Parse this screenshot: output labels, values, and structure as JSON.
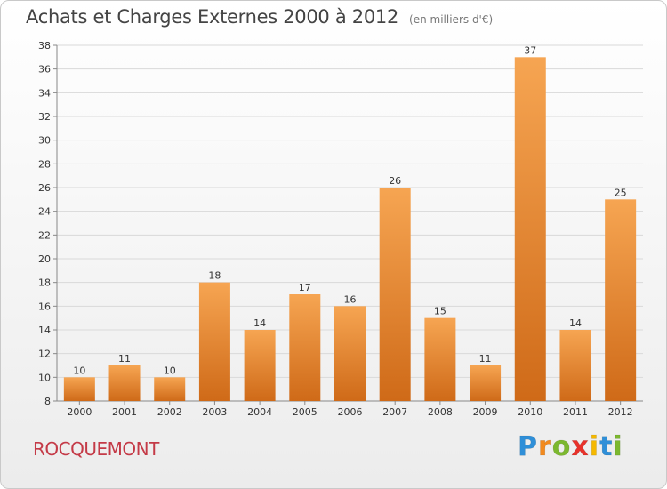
{
  "header": {
    "title": "Achats et Charges Externes 2000 à 2012",
    "unit": "(en milliers d'€)"
  },
  "footer": {
    "commune": "ROCQUEMONT",
    "brand": "Proxiti",
    "brand_letters": [
      {
        "ch": "P",
        "color": "#2f8fd8"
      },
      {
        "ch": "r",
        "color": "#f28a1e"
      },
      {
        "ch": "o",
        "color": "#7cb82f"
      },
      {
        "ch": "x",
        "color": "#e8322b"
      },
      {
        "ch": "i",
        "color": "#f5b800"
      },
      {
        "ch": "t",
        "color": "#2f8fd8"
      },
      {
        "ch": "i",
        "color": "#7cb82f"
      }
    ]
  },
  "colors": {
    "bar_light": "#f6a552",
    "bar_dark": "#cf6a18",
    "grid": "#d9d9d9",
    "axis": "#888888",
    "text": "#333333",
    "commune": "#c43a47"
  },
  "chart_data": {
    "type": "bar",
    "title": "Achats et Charges Externes 2000 à 2012",
    "subtitle": "(en milliers d'€)",
    "categories": [
      "2000",
      "2001",
      "2002",
      "2003",
      "2004",
      "2005",
      "2006",
      "2007",
      "2008",
      "2009",
      "2010",
      "2011",
      "2012"
    ],
    "values": [
      10,
      11,
      10,
      18,
      14,
      17,
      16,
      26,
      15,
      11,
      37,
      14,
      25
    ],
    "data_labels": [
      "10",
      "11",
      "10",
      "18",
      "14",
      "17",
      "16",
      "26",
      "15",
      "11",
      "37",
      "14",
      "25"
    ],
    "ylim": [
      8,
      38
    ],
    "yticks": [
      8,
      10,
      12,
      14,
      16,
      18,
      20,
      22,
      24,
      26,
      28,
      30,
      32,
      34,
      36,
      38
    ],
    "xlabel": "",
    "ylabel": "",
    "grid": true,
    "legend": "none"
  }
}
